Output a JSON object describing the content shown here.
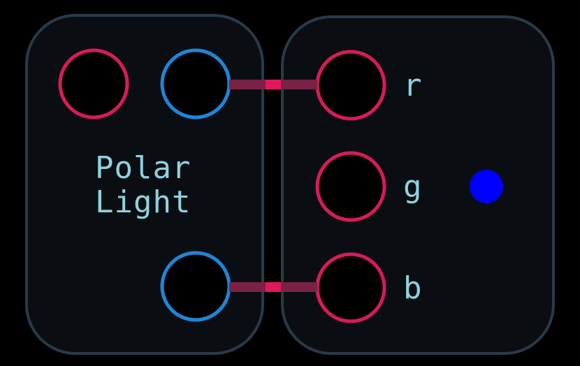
{
  "colors": {
    "background": "#000000",
    "module_fill": "#0a0e13",
    "module_border": "#2a3a47",
    "input_port": "#d81b57",
    "output_port": "#1e86d8",
    "cable_end": "#7a2146",
    "cable_mid": "#e0195e",
    "label": "#8fd3de",
    "indicator": "#0000ff"
  },
  "module_left": {
    "title_line1": "Polar",
    "title_line2": "Light"
  },
  "module_right": {
    "ports": [
      {
        "label": "r"
      },
      {
        "label": "g"
      },
      {
        "label": "b"
      }
    ],
    "indicator_icon": "status-dot"
  }
}
